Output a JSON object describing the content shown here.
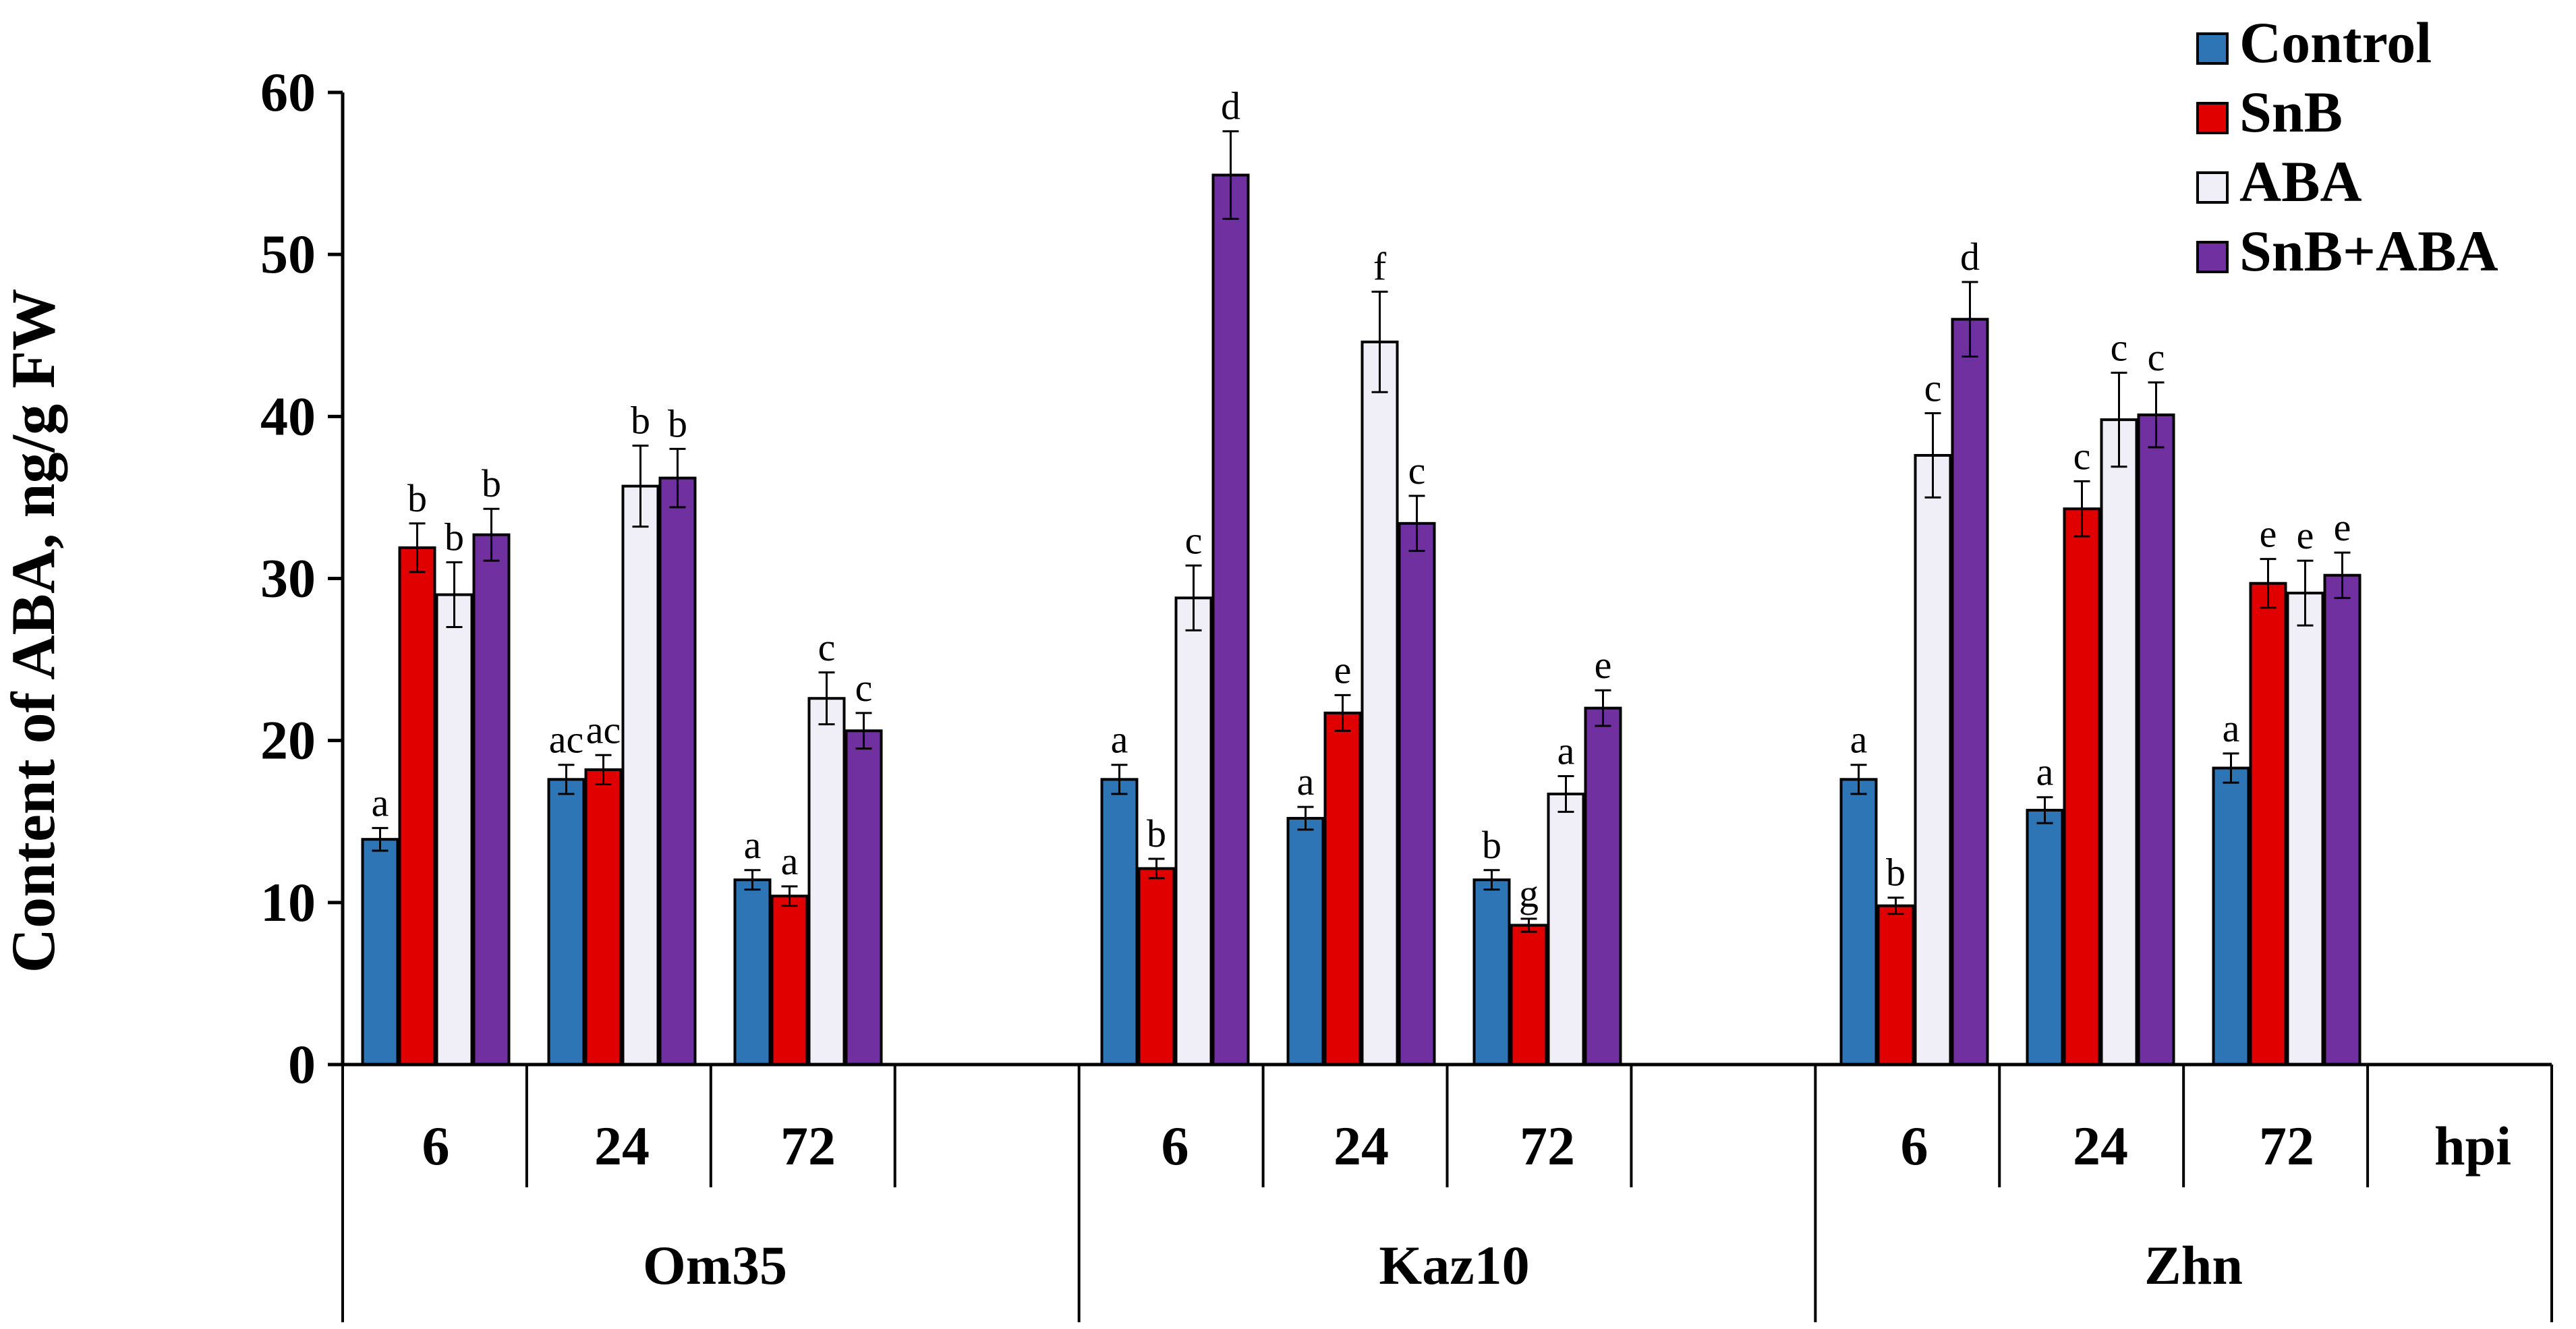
{
  "colors": {
    "Control": "#2e75b6",
    "SnB": "#e00000",
    "ABA": "#f0eef6",
    "SnB+ABA": "#7030a0",
    "axis": "#000000"
  },
  "chart_data": {
    "type": "bar",
    "ylabel": "Content of ABA, ng/g FW",
    "ylim": [
      0,
      60
    ],
    "yticks": [
      0,
      10,
      20,
      30,
      40,
      50,
      60
    ],
    "legend_position": "top-right",
    "time_unit": "hpi",
    "series_names": [
      "Control",
      "SnB",
      "ABA",
      "SnB+ABA"
    ],
    "groups": [
      {
        "name": "Om35",
        "times": [
          {
            "time": "6",
            "values": [
              13.9,
              31.9,
              29.0,
              32.7
            ],
            "errors": [
              0.7,
              1.5,
              2.0,
              1.6
            ],
            "letters": [
              "a",
              "b",
              "b",
              "b"
            ]
          },
          {
            "time": "24",
            "values": [
              17.6,
              18.2,
              35.7,
              36.2
            ],
            "errors": [
              0.9,
              0.9,
              2.5,
              1.8
            ],
            "letters": [
              "ac",
              "ac",
              "b",
              "b"
            ]
          },
          {
            "time": "72",
            "values": [
              11.4,
              10.4,
              22.6,
              20.6
            ],
            "errors": [
              0.6,
              0.6,
              1.6,
              1.1
            ],
            "letters": [
              "a",
              "a",
              "c",
              "c"
            ]
          }
        ]
      },
      {
        "name": "Kaz10",
        "times": [
          {
            "time": "6",
            "values": [
              17.6,
              12.1,
              28.8,
              54.9
            ],
            "errors": [
              0.9,
              0.6,
              2.0,
              2.7
            ],
            "letters": [
              "a",
              "b",
              "c",
              "d"
            ]
          },
          {
            "time": "24",
            "values": [
              15.2,
              21.7,
              44.6,
              33.4
            ],
            "errors": [
              0.7,
              1.1,
              3.1,
              1.7
            ],
            "letters": [
              "a",
              "e",
              "f",
              "c"
            ]
          },
          {
            "time": "72",
            "values": [
              11.4,
              8.6,
              16.7,
              22.0
            ],
            "errors": [
              0.6,
              0.4,
              1.1,
              1.1
            ],
            "letters": [
              "b",
              "g",
              "a",
              "e"
            ]
          }
        ]
      },
      {
        "name": "Zhn",
        "times": [
          {
            "time": "6",
            "values": [
              17.6,
              9.8,
              37.6,
              46.0
            ],
            "errors": [
              0.9,
              0.5,
              2.6,
              2.3
            ],
            "letters": [
              "a",
              "b",
              "c",
              "d"
            ]
          },
          {
            "time": "24",
            "values": [
              15.7,
              34.3,
              39.8,
              40.1
            ],
            "errors": [
              0.8,
              1.7,
              2.9,
              2.0
            ],
            "letters": [
              "a",
              "c",
              "c",
              "c"
            ]
          },
          {
            "time": "72",
            "values": [
              18.3,
              29.7,
              29.1,
              30.2
            ],
            "errors": [
              0.9,
              1.5,
              2.0,
              1.4
            ],
            "letters": [
              "a",
              "e",
              "e",
              "e"
            ]
          }
        ]
      }
    ]
  }
}
